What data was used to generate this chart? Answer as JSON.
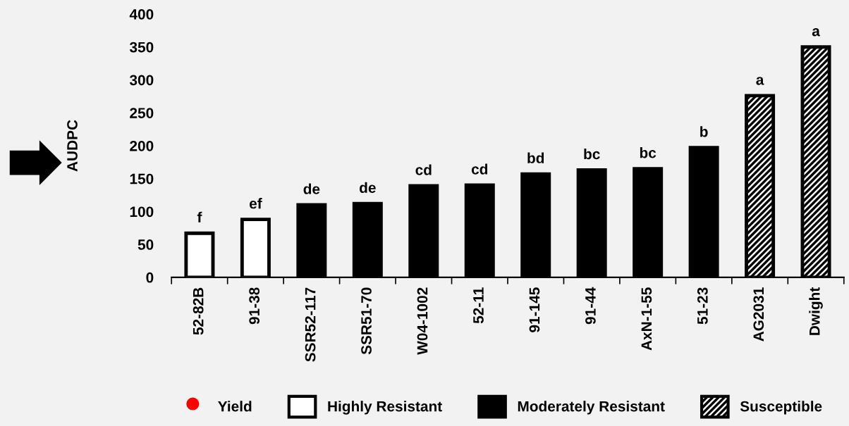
{
  "chart_data": {
    "type": "bar",
    "ylabel": "AUDPC",
    "categories": [
      "52-82B",
      "91-38",
      "SSR52-117",
      "SSR51-70",
      "W04-1002",
      "52-11",
      "91-145",
      "91-44",
      "AxN-1-55",
      "51-23",
      "AG2031",
      "Dwight"
    ],
    "series": [
      {
        "name": "Yield",
        "type": "scatter",
        "color": "#ff0000",
        "values": [
          null,
          null,
          null,
          null,
          null,
          null,
          null,
          null,
          null,
          null,
          null,
          null
        ]
      },
      {
        "name": "Highly Resistant",
        "color": "#ffffff",
        "values": [
          67,
          88,
          null,
          null,
          null,
          null,
          null,
          null,
          null,
          null,
          null,
          null
        ],
        "value_labels": [
          "f",
          "ef",
          null,
          null,
          null,
          null,
          null,
          null,
          null,
          null,
          null,
          null
        ]
      },
      {
        "name": "Moderately Resistant",
        "color": "#000000",
        "values": [
          null,
          null,
          110,
          112,
          139,
          140,
          157,
          163,
          165,
          197,
          null,
          null
        ],
        "value_labels": [
          null,
          null,
          "de",
          "de",
          "cd",
          "cd",
          "bd",
          "bc",
          "bc",
          "b",
          null,
          null
        ]
      },
      {
        "name": "Susceptible",
        "color": "#000000",
        "values": [
          null,
          null,
          null,
          null,
          null,
          null,
          null,
          null,
          null,
          null,
          276,
          350
        ],
        "value_labels": [
          null,
          null,
          null,
          null,
          null,
          null,
          null,
          null,
          null,
          null,
          "a",
          "a"
        ]
      }
    ],
    "ylim": [
      0,
      400
    ],
    "yticks": [
      0,
      50,
      100,
      150,
      200,
      250,
      300,
      350,
      400
    ],
    "grid": false,
    "legend": "bottom"
  }
}
